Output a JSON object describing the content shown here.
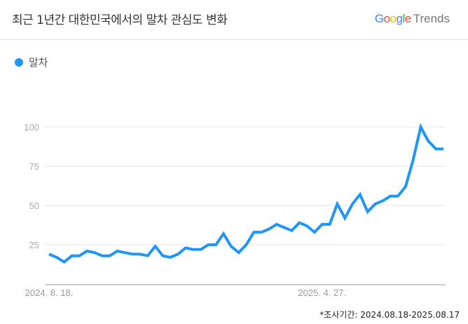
{
  "header": {
    "title": "최근 1년간 대한민국에서의 말차 관심도 변화",
    "logo_text": "Google Trends"
  },
  "legend": {
    "series_label": "말차",
    "color": "#2196F3"
  },
  "footnote": "*조사기간: 2024.08.18-2025.08.17",
  "chart_data": {
    "type": "line",
    "title": "최근 1년간 대한민국에서의 말차 관심도 변화",
    "xlabel": "",
    "ylabel": "",
    "ylim": [
      0,
      100
    ],
    "yticks": [
      25,
      50,
      75,
      100
    ],
    "xtick_labels": [
      {
        "label": "2024. 8. 18.",
        "index": 0
      },
      {
        "label": "2025. 4. 27.",
        "index": 36
      }
    ],
    "grid": true,
    "legend_position": "top-left",
    "x_start": "2024-08-18",
    "x_end": "2025-08-17",
    "x_interval": "weekly",
    "series": [
      {
        "name": "말차",
        "color": "#2196F3",
        "values": [
          19,
          17,
          14,
          18,
          18,
          21,
          20,
          18,
          18,
          21,
          20,
          19,
          19,
          18,
          24,
          18,
          17,
          19,
          23,
          22,
          22,
          25,
          25,
          32,
          24,
          20,
          25,
          33,
          33,
          35,
          38,
          36,
          34,
          39,
          37,
          33,
          38,
          38,
          51,
          42,
          51,
          57,
          46,
          51,
          53,
          56,
          56,
          62,
          79,
          100,
          91,
          86,
          86
        ]
      }
    ]
  }
}
